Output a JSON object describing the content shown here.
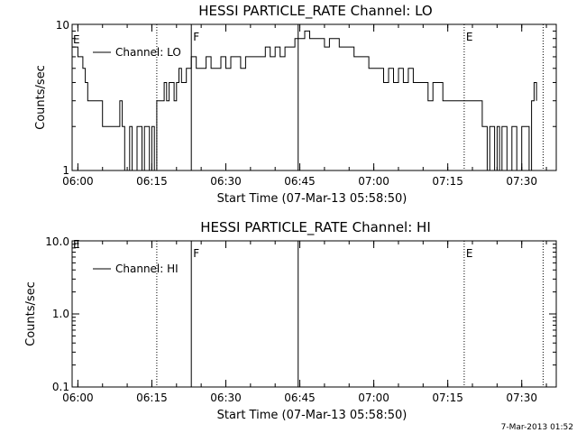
{
  "footer": {
    "stamp": "7-Mar-2013 01:52"
  },
  "colors": {
    "line": "#000000",
    "background": "#ffffff"
  },
  "chart_data": [
    {
      "type": "line",
      "title": "HESSI PARTICLE_RATE Channel: LO",
      "xlabel": "Start Time (07-Mar-13 05:58:50)",
      "ylabel": "Counts/sec",
      "y_scale": "log",
      "ylim": [
        1,
        10
      ],
      "xlim": [
        "05:58:50",
        "07:37:00"
      ],
      "x_ticks": [
        "06:00",
        "06:15",
        "06:30",
        "06:45",
        "07:00",
        "07:15",
        "07:30"
      ],
      "y_ticks": [
        "1",
        "10"
      ],
      "legend": {
        "position": "top-left",
        "entries": [
          "Channel: LO"
        ]
      },
      "grid": false,
      "markers": [
        {
          "time": "06:16:00",
          "style": "dotted",
          "label": ""
        },
        {
          "time": "06:23:00",
          "style": "solid",
          "label": "F"
        },
        {
          "time": "06:44:40",
          "style": "solid",
          "label": ""
        },
        {
          "time": "07:18:20",
          "style": "dotted",
          "label": "E"
        },
        {
          "time": "07:34:20",
          "style": "dotted",
          "label": ""
        }
      ],
      "edge_label": "E",
      "series": [
        {
          "x": [
            "05:58:50",
            "06:00:00",
            "06:01:00",
            "06:01:30",
            "06:02:00",
            "06:03:00",
            "06:04:00",
            "06:05:00",
            "06:06:00",
            "06:07:00",
            "06:08:00",
            "06:08:30",
            "06:09:00",
            "06:09:30",
            "06:10:00",
            "06:10:30",
            "06:11:00",
            "06:11:30",
            "06:12:00",
            "06:12:30",
            "06:13:00",
            "06:13:30",
            "06:14:00",
            "06:14:30",
            "06:15:00",
            "06:15:30",
            "06:16:00",
            "06:16:30",
            "06:17:00",
            "06:17:30",
            "06:18:00",
            "06:18:30",
            "06:19:00",
            "06:19:30",
            "06:20:00",
            "06:20:30",
            "06:21:00",
            "06:22:00",
            "06:23:00",
            "06:24:00",
            "06:25:00",
            "06:26:00",
            "06:27:00",
            "06:28:00",
            "06:29:00",
            "06:30:00",
            "06:31:00",
            "06:32:00",
            "06:33:00",
            "06:34:00",
            "06:35:00",
            "06:36:00",
            "06:37:00",
            "06:38:00",
            "06:39:00",
            "06:40:00",
            "06:41:00",
            "06:42:00",
            "06:43:00",
            "06:44:00",
            "06:45:00",
            "06:46:00",
            "06:47:00",
            "06:48:00",
            "06:49:00",
            "06:50:00",
            "06:51:00",
            "06:52:00",
            "06:53:00",
            "06:54:00",
            "06:55:00",
            "06:56:00",
            "06:57:00",
            "06:58:00",
            "06:59:00",
            "07:00:00",
            "07:01:00",
            "07:02:00",
            "07:03:00",
            "07:04:00",
            "07:05:00",
            "07:06:00",
            "07:07:00",
            "07:08:00",
            "07:09:00",
            "07:10:00",
            "07:11:00",
            "07:12:00",
            "07:13:00",
            "07:14:00",
            "07:15:00",
            "07:16:00",
            "07:17:00",
            "07:18:00",
            "07:19:00",
            "07:20:00",
            "07:21:00",
            "07:22:00",
            "07:22:30",
            "07:23:00",
            "07:23:30",
            "07:24:00",
            "07:24:30",
            "07:25:00",
            "07:25:30",
            "07:26:00",
            "07:26:30",
            "07:27:00",
            "07:27:30",
            "07:28:00",
            "07:28:30",
            "07:29:00",
            "07:29:30",
            "07:30:00",
            "07:30:30",
            "07:31:00",
            "07:31:30",
            "07:32:00",
            "07:32:30",
            "07:33:00"
          ],
          "y": [
            7,
            6,
            5,
            4,
            3,
            3,
            3,
            2,
            2,
            2,
            2,
            3,
            2,
            1,
            1,
            2,
            1,
            1,
            2,
            2,
            1,
            2,
            2,
            1,
            2,
            1,
            3,
            3,
            3,
            4,
            3,
            4,
            4,
            3,
            4,
            5,
            4,
            5,
            6,
            5,
            5,
            6,
            5,
            5,
            6,
            5,
            6,
            6,
            5,
            6,
            6,
            6,
            6,
            7,
            6,
            7,
            6,
            7,
            7,
            8,
            8,
            9,
            8,
            8,
            8,
            7,
            8,
            8,
            7,
            7,
            7,
            6,
            6,
            6,
            5,
            5,
            5,
            4,
            5,
            4,
            5,
            4,
            5,
            4,
            4,
            4,
            3,
            4,
            4,
            3,
            3,
            3,
            3,
            3,
            3,
            3,
            3,
            2,
            2,
            1,
            2,
            2,
            1,
            2,
            1,
            2,
            2,
            1,
            1,
            2,
            2,
            1,
            1,
            2,
            2,
            2,
            1,
            3,
            4,
            3
          ]
        }
      ]
    },
    {
      "type": "line",
      "title": "HESSI PARTICLE_RATE Channel: HI",
      "xlabel": "Start Time (07-Mar-13 05:58:50)",
      "ylabel": "Counts/sec",
      "y_scale": "log",
      "ylim": [
        0.1,
        10
      ],
      "xlim": [
        "05:58:50",
        "07:37:00"
      ],
      "x_ticks": [
        "06:00",
        "06:15",
        "06:30",
        "06:45",
        "07:00",
        "07:15",
        "07:30"
      ],
      "y_ticks": [
        "0.1",
        "1.0",
        "10.0"
      ],
      "legend": {
        "position": "top-left",
        "entries": [
          "Channel: HI"
        ]
      },
      "grid": false,
      "markers": [
        {
          "time": "06:16:00",
          "style": "dotted",
          "label": ""
        },
        {
          "time": "06:23:00",
          "style": "solid",
          "label": "F"
        },
        {
          "time": "06:44:40",
          "style": "solid",
          "label": ""
        },
        {
          "time": "07:18:20",
          "style": "dotted",
          "label": "E"
        },
        {
          "time": "07:34:20",
          "style": "dotted",
          "label": ""
        }
      ],
      "edge_label": "E",
      "series": [
        {
          "x": [],
          "y": []
        }
      ]
    }
  ]
}
